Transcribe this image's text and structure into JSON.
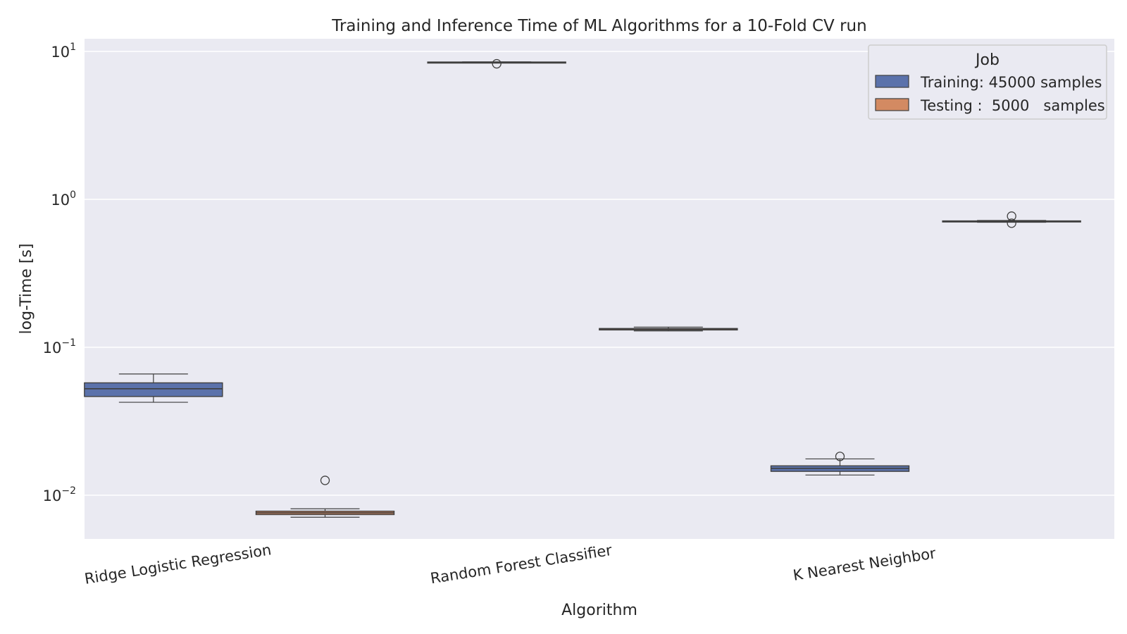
{
  "chart_data": {
    "type": "box",
    "title": "Training and Inference Time of ML Algorithms for a 10-Fold CV run",
    "xlabel": "Algorithm",
    "ylabel": "log-Time [s]",
    "yscale": "log",
    "ylim": [
      0.0052,
      12.5
    ],
    "yticks": [
      {
        "value": 0.01,
        "base": "10",
        "exp": "−2"
      },
      {
        "value": 0.1,
        "base": "10",
        "exp": "−1"
      },
      {
        "value": 1,
        "base": "10",
        "exp": "0"
      },
      {
        "value": 10,
        "base": "10",
        "exp": "1"
      }
    ],
    "categories": [
      "Ridge Logistic Regression",
      "Random Forest Classifier",
      "K Nearest Neighbor"
    ],
    "legend": {
      "title": "Job",
      "position": "top-right"
    },
    "grid": true,
    "series": [
      {
        "name": "Training: 45000 samples",
        "color": "#5b72ab",
        "boxes": [
          {
            "whislo": 0.0425,
            "q1": 0.0465,
            "med": 0.0525,
            "q3": 0.0575,
            "whishi": 0.066,
            "fliers": []
          },
          {
            "whislo": 8.35,
            "q1": 8.4,
            "med": 8.45,
            "q3": 8.48,
            "whishi": 8.5,
            "fliers": [
              8.25
            ]
          },
          {
            "whislo": 0.0137,
            "q1": 0.0145,
            "med": 0.0152,
            "q3": 0.0158,
            "whishi": 0.0176,
            "fliers": [
              0.0183
            ]
          }
        ]
      },
      {
        "name": "Testing :  5000   samples",
        "color": "#d38a62",
        "boxes": [
          {
            "whislo": 0.0071,
            "q1": 0.0074,
            "med": 0.0076,
            "q3": 0.0078,
            "whishi": 0.0081,
            "fliers": [
              0.0126
            ]
          },
          {
            "whislo": 0.129,
            "q1": 0.131,
            "med": 0.133,
            "q3": 0.134,
            "whishi": 0.137,
            "fliers": []
          },
          {
            "whislo": 0.7,
            "q1": 0.705,
            "med": 0.71,
            "q3": 0.715,
            "whishi": 0.72,
            "fliers": [
              0.77,
              0.69
            ]
          }
        ]
      }
    ]
  }
}
